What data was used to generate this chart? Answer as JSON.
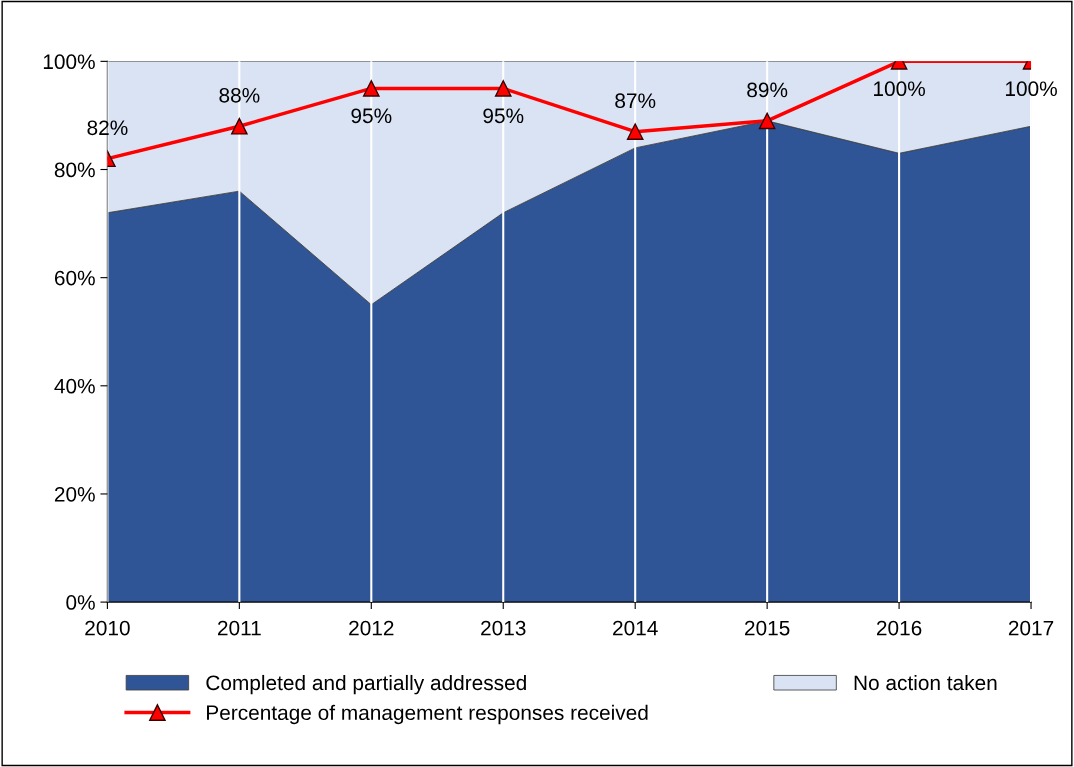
{
  "chart_data": {
    "type": "area",
    "stacked": true,
    "categories": [
      "2010",
      "2011",
      "2012",
      "2013",
      "2014",
      "2015",
      "2016",
      "2017"
    ],
    "series": [
      {
        "name": "Completed and partially addressed",
        "color": "#2f5597",
        "values": [
          72,
          76,
          55,
          72,
          84,
          89,
          83,
          88
        ]
      },
      {
        "name": "No action taken",
        "color": "#dae3f3",
        "values": [
          28,
          24,
          45,
          28,
          16,
          11,
          17,
          12
        ]
      },
      {
        "name": "Percentage of management responses received",
        "type": "line",
        "color": "#ff0000",
        "marker": "triangle",
        "values": [
          82,
          88,
          95,
          95,
          87,
          89,
          100,
          100
        ],
        "value_labels": [
          "82%",
          "88%",
          "95%",
          "95%",
          "87%",
          "89%",
          "100%",
          "100%"
        ]
      }
    ],
    "ylim": [
      0,
      100
    ],
    "yticks": [
      {
        "value": 0,
        "label": "0%"
      },
      {
        "value": 20,
        "label": "20%"
      },
      {
        "value": 40,
        "label": "40%"
      },
      {
        "value": 60,
        "label": "60%"
      },
      {
        "value": 80,
        "label": "80%"
      },
      {
        "value": 100,
        "label": "100%"
      }
    ],
    "grid": "x",
    "legend": "bottom"
  }
}
